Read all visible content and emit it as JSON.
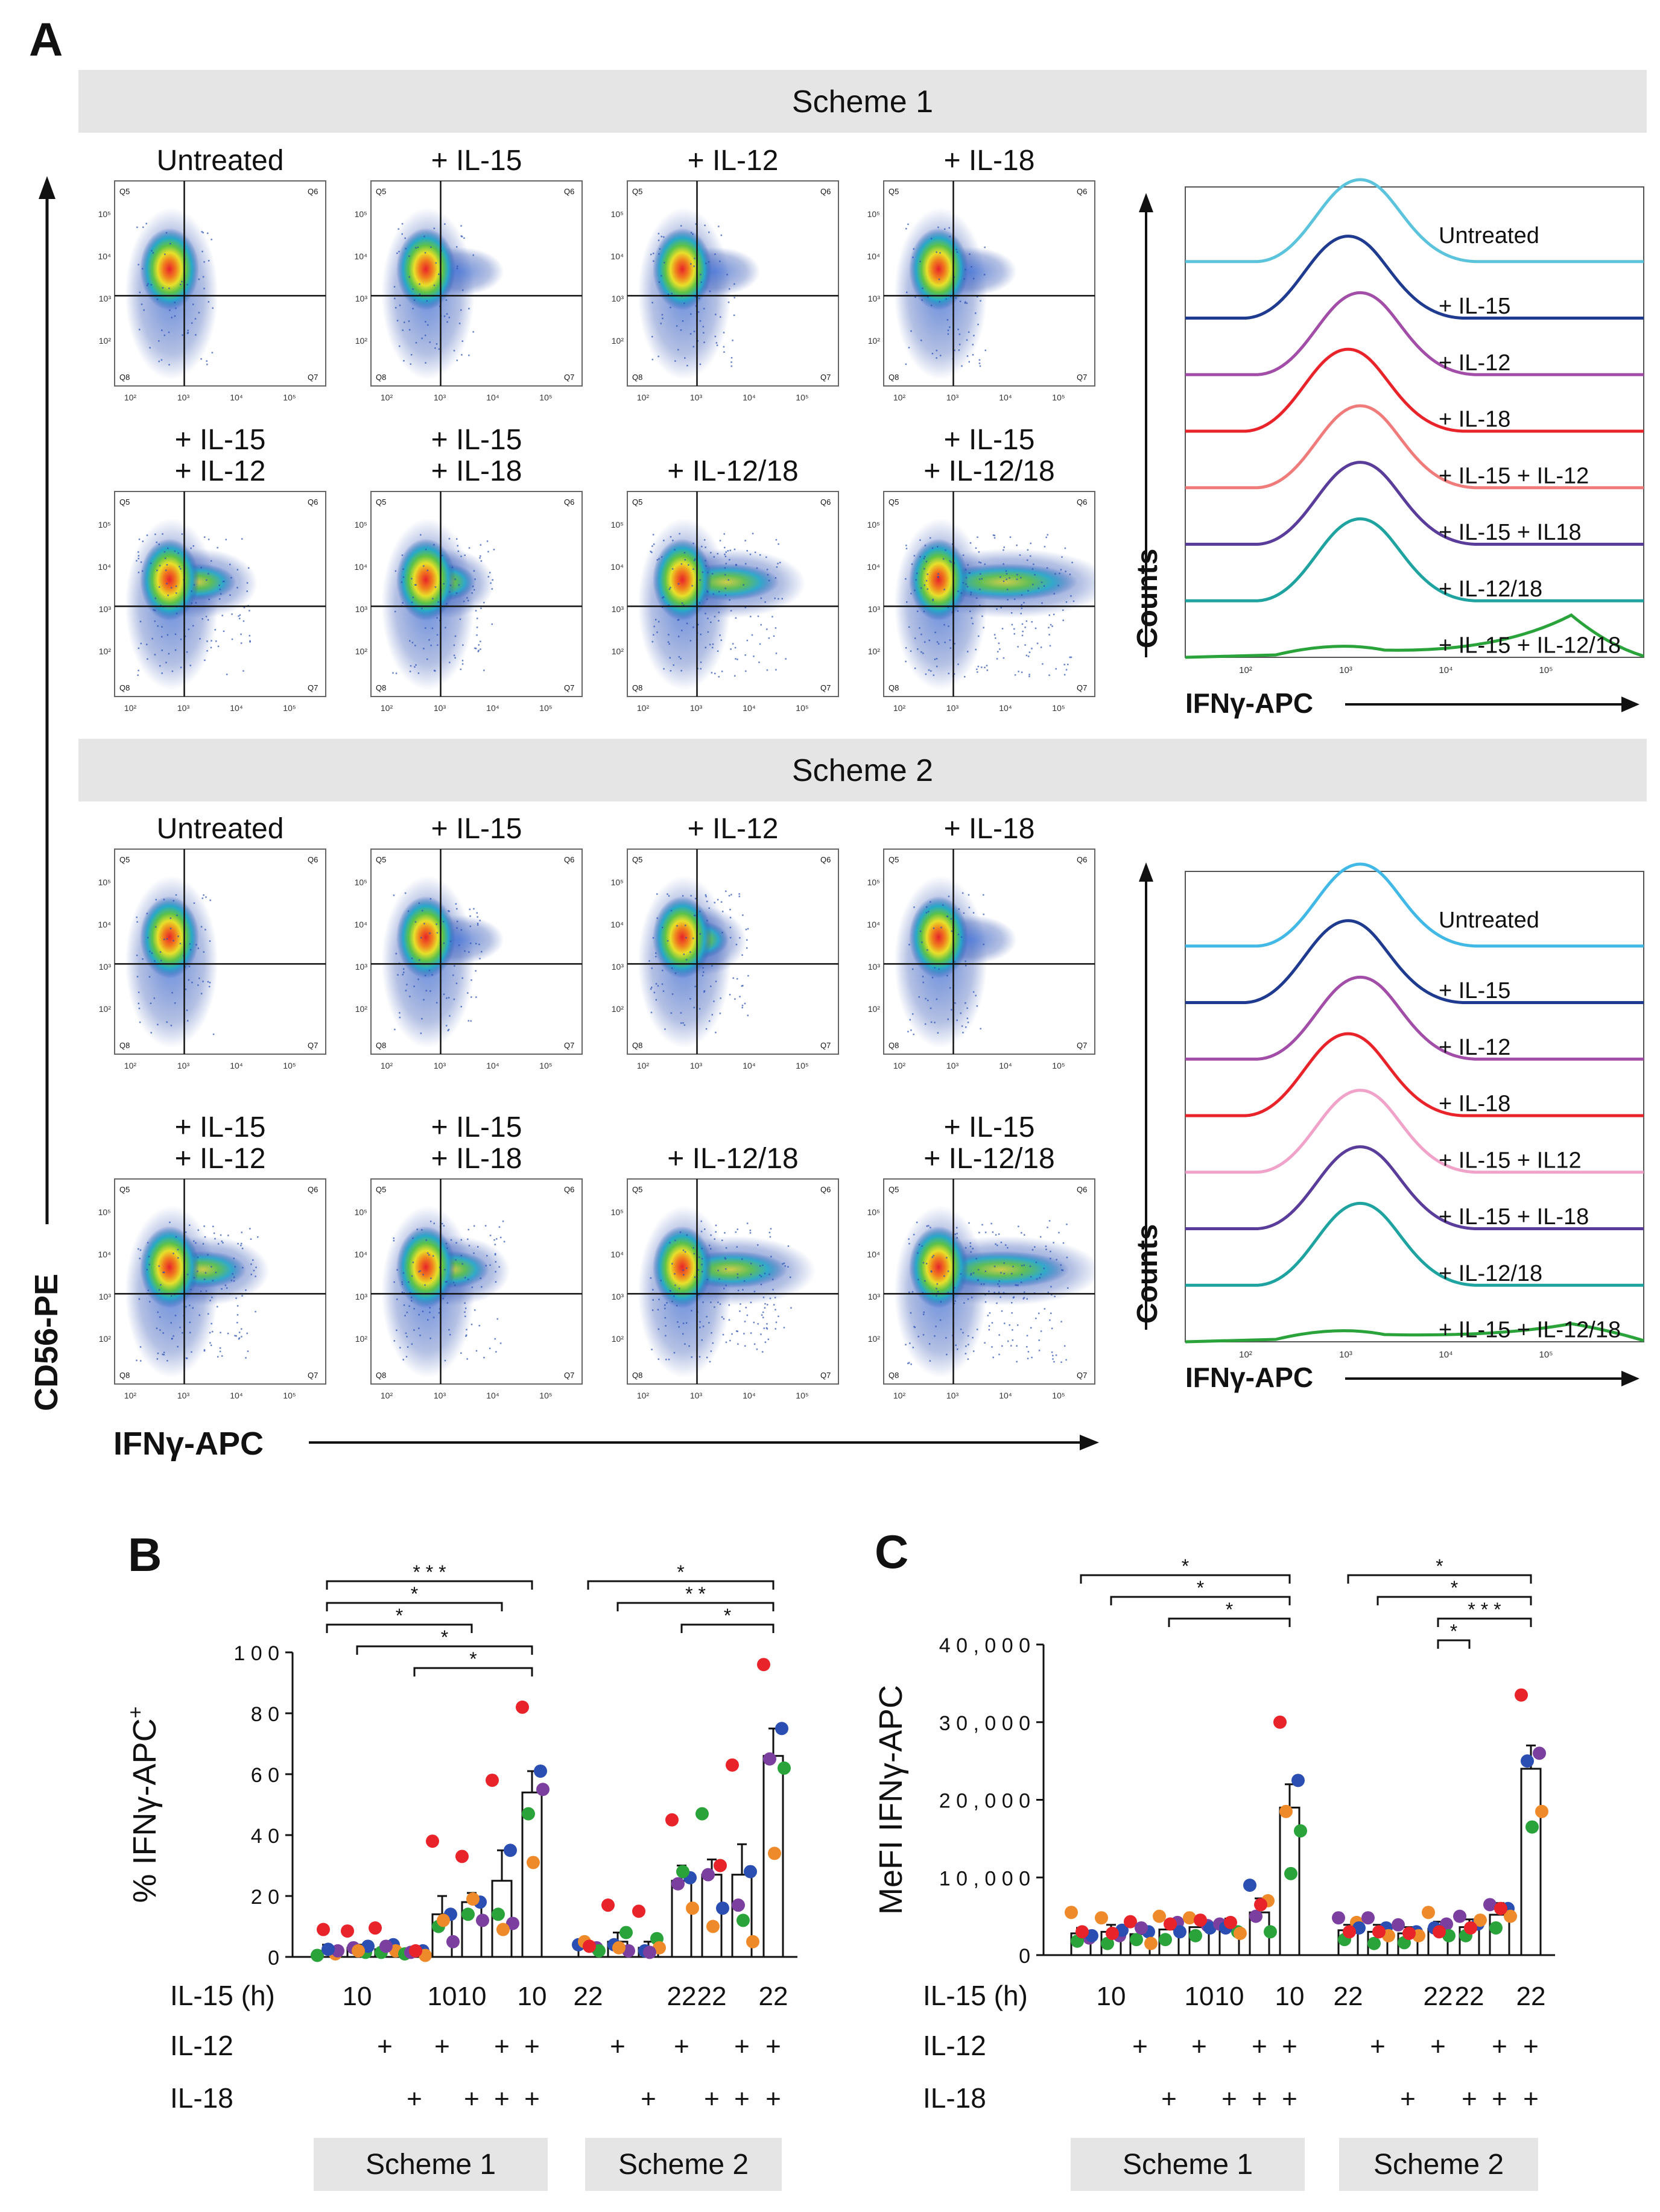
{
  "panel_labels": {
    "a": "A",
    "b": "B",
    "c": "C"
  },
  "schemes": [
    {
      "title": "Scheme 1",
      "plots": [
        {
          "l1": "",
          "l2": "Untreated",
          "ifng_high_fraction": 0.02
        },
        {
          "l1": "",
          "l2": "+ IL-15",
          "ifng_high_fraction": 0.07
        },
        {
          "l1": "",
          "l2": "+ IL-12",
          "ifng_high_fraction": 0.1
        },
        {
          "l1": "",
          "l2": "+ IL-18",
          "ifng_high_fraction": 0.05
        },
        {
          "l1": "+ IL-15",
          "l2": "+ IL-12",
          "ifng_high_fraction": 0.32
        },
        {
          "l1": "+ IL-15",
          "l2": "+ IL-18",
          "ifng_high_fraction": 0.22
        },
        {
          "l1": "",
          "l2": "+ IL-12/18",
          "ifng_high_fraction": 0.5
        },
        {
          "l1": "+ IL-15",
          "l2": "+ IL-12/18",
          "ifng_high_fraction": 0.75
        }
      ],
      "histogram": {
        "labels": [
          "Untreated",
          "+ IL-15",
          "+ IL-12",
          "+ IL-18",
          "+ IL-15 + IL-12",
          "+ IL-15 + IL18",
          "+ IL-12/18",
          "+ IL-15 + IL-12/18"
        ],
        "colors": [
          "#5bc4dc",
          "#1f3b8f",
          "#a24ea8",
          "#e8232a",
          "#f07b7b",
          "#5a3d9b",
          "#1fa3a0",
          "#2ba33b"
        ]
      }
    },
    {
      "title": "Scheme 2",
      "plots": [
        {
          "l1": "",
          "l2": "Untreated",
          "ifng_high_fraction": 0.03
        },
        {
          "l1": "",
          "l2": "+ IL-15",
          "ifng_high_fraction": 0.12
        },
        {
          "l1": "",
          "l2": "+ IL-12",
          "ifng_high_fraction": 0.2
        },
        {
          "l1": "",
          "l2": "+ IL-18",
          "ifng_high_fraction": 0.05
        },
        {
          "l1": "+ IL-15",
          "l2": "+ IL-12",
          "ifng_high_fraction": 0.38
        },
        {
          "l1": "+ IL-15",
          "l2": "+ IL-18",
          "ifng_high_fraction": 0.3
        },
        {
          "l1": "",
          "l2": "+ IL-12/18",
          "ifng_high_fraction": 0.55
        },
        {
          "l1": "+ IL-15",
          "l2": "+ IL-12/18",
          "ifng_high_fraction": 0.7
        }
      ],
      "histogram": {
        "labels": [
          "Untreated",
          "+ IL-15",
          "+ IL-12",
          "+ IL-18",
          "+ IL-15 + IL12",
          "+ IL-15 + IL-18",
          "+ IL-12/18",
          "+ IL-15 + IL-12/18"
        ],
        "colors": [
          "#41b8e6",
          "#1f3b8f",
          "#a24ea8",
          "#e8232a",
          "#f0a2c8",
          "#5a3d9b",
          "#1fa3a0",
          "#2ba33b"
        ]
      }
    }
  ],
  "quadrant_labels": [
    "Q5",
    "Q6",
    "Q8",
    "Q7"
  ],
  "tick_exponents": [
    "10²",
    "10³",
    "10⁴",
    "10⁵"
  ],
  "hist_tick_exponents": [
    "10²",
    "10³",
    "10⁴",
    "10⁵"
  ],
  "axis_labels": {
    "flow_y": "CD56-PE",
    "flow_x": "IFNγ-APC",
    "hist_y": "Counts",
    "hist_x": "IFNγ-APC"
  },
  "row_labels": {
    "il15": "IL-15 (h)",
    "il12": "IL-12",
    "il18": "IL-18"
  },
  "plus_sign": "+",
  "conditions": [
    {
      "il15": "",
      "il12": "",
      "il18": ""
    },
    {
      "il15": "10",
      "il12": "",
      "il18": ""
    },
    {
      "il15": "",
      "il12": "+",
      "il18": ""
    },
    {
      "il15": "",
      "il12": "",
      "il18": "+"
    },
    {
      "il15": "10",
      "il12": "+",
      "il18": ""
    },
    {
      "il15": "10",
      "il12": "",
      "il18": "+"
    },
    {
      "il15": "",
      "il12": "+",
      "il18": "+"
    },
    {
      "il15": "10",
      "il12": "+",
      "il18": "+"
    },
    {
      "il15": "22",
      "il12": "",
      "il18": ""
    },
    {
      "il15": "",
      "il12": "+",
      "il18": ""
    },
    {
      "il15": "",
      "il12": "",
      "il18": "+"
    },
    {
      "il15": "22",
      "il12": "+",
      "il18": ""
    },
    {
      "il15": "22",
      "il12": "",
      "il18": "+"
    },
    {
      "il15": "",
      "il12": "+",
      "il18": "+"
    },
    {
      "il15": "22",
      "il12": "+",
      "il18": "+"
    }
  ],
  "group_labels": [
    "Scheme 1",
    "Scheme 2"
  ],
  "chart_data": [
    {
      "id": "B",
      "type": "bar",
      "title": "",
      "ylabel": "% IFNγ-APC",
      "ylabel_sup": "+",
      "ylim": [
        0,
        100
      ],
      "yticks": [
        0,
        20,
        40,
        60,
        80,
        100
      ],
      "ytick_labels": [
        "0",
        "2 0",
        "4 0",
        "6 0",
        "8 0",
        "1 0 0"
      ],
      "means": [
        2,
        3,
        2.5,
        1.5,
        14,
        18,
        25,
        54,
        3.5,
        5,
        3,
        25,
        27,
        27,
        66
      ],
      "errors": [
        2,
        1,
        1.5,
        0.5,
        6,
        3,
        10,
        7,
        1,
        3,
        2,
        5,
        5,
        10,
        9
      ],
      "points": [
        [
          [
            0.5,
            "#2ba33b"
          ],
          [
            1,
            "#ef8a2b"
          ],
          [
            9,
            "#e8232a"
          ],
          [
            2,
            "#7b3fa0"
          ],
          [
            2.5,
            "#2a4eb2"
          ]
        ],
        [
          [
            8.5,
            "#e8232a"
          ],
          [
            1.5,
            "#2ba33b"
          ],
          [
            3,
            "#7b3fa0"
          ],
          [
            3.5,
            "#2a4eb2"
          ],
          [
            2,
            "#ef8a2b"
          ]
        ],
        [
          [
            9.5,
            "#e8232a"
          ],
          [
            4,
            "#2a4eb2"
          ],
          [
            1.5,
            "#2ba33b"
          ],
          [
            2,
            "#ef8a2b"
          ],
          [
            3.5,
            "#7b3fa0"
          ]
        ],
        [
          [
            1,
            "#2ba33b"
          ],
          [
            2,
            "#2a4eb2"
          ],
          [
            1.5,
            "#7b3fa0"
          ],
          [
            0.5,
            "#ef8a2b"
          ],
          [
            2,
            "#e8232a"
          ]
        ],
        [
          [
            38,
            "#e8232a"
          ],
          [
            14,
            "#2a4eb2"
          ],
          [
            10,
            "#2ba33b"
          ],
          [
            5,
            "#7b3fa0"
          ],
          [
            12,
            "#ef8a2b"
          ]
        ],
        [
          [
            33,
            "#e8232a"
          ],
          [
            18,
            "#2a4eb2"
          ],
          [
            14,
            "#2ba33b"
          ],
          [
            12,
            "#7b3fa0"
          ],
          [
            19,
            "#ef8a2b"
          ]
        ],
        [
          [
            58,
            "#e8232a"
          ],
          [
            35,
            "#2a4eb2"
          ],
          [
            14,
            "#2ba33b"
          ],
          [
            11,
            "#7b3fa0"
          ],
          [
            9,
            "#ef8a2b"
          ]
        ],
        [
          [
            82,
            "#e8232a"
          ],
          [
            61,
            "#2a4eb2"
          ],
          [
            47,
            "#2ba33b"
          ],
          [
            55,
            "#7b3fa0"
          ],
          [
            31,
            "#ef8a2b"
          ]
        ],
        [
          [
            4,
            "#2a4eb2"
          ],
          [
            3,
            "#7b3fa0"
          ],
          [
            5,
            "#ef8a2b"
          ],
          [
            2,
            "#2ba33b"
          ],
          [
            3.5,
            "#e8232a"
          ]
        ],
        [
          [
            17,
            "#e8232a"
          ],
          [
            8,
            "#2ba33b"
          ],
          [
            4,
            "#2a4eb2"
          ],
          [
            2,
            "#7b3fa0"
          ],
          [
            3,
            "#ef8a2b"
          ]
        ],
        [
          [
            15,
            "#e8232a"
          ],
          [
            6,
            "#2ba33b"
          ],
          [
            2,
            "#2a4eb2"
          ],
          [
            3,
            "#ef8a2b"
          ],
          [
            1.5,
            "#7b3fa0"
          ]
        ],
        [
          [
            45,
            "#e8232a"
          ],
          [
            26,
            "#2a4eb2"
          ],
          [
            24,
            "#7b3fa0"
          ],
          [
            16,
            "#ef8a2b"
          ],
          [
            28,
            "#2ba33b"
          ]
        ],
        [
          [
            47,
            "#2ba33b"
          ],
          [
            30,
            "#e8232a"
          ],
          [
            27,
            "#7b3fa0"
          ],
          [
            16,
            "#2a4eb2"
          ],
          [
            10,
            "#ef8a2b"
          ]
        ],
        [
          [
            63,
            "#e8232a"
          ],
          [
            28,
            "#2a4eb2"
          ],
          [
            17,
            "#7b3fa0"
          ],
          [
            5,
            "#ef8a2b"
          ],
          [
            12,
            "#2ba33b"
          ]
        ],
        [
          [
            96,
            "#e8232a"
          ],
          [
            75,
            "#2a4eb2"
          ],
          [
            65,
            "#7b3fa0"
          ],
          [
            62,
            "#2ba33b"
          ],
          [
            34,
            "#ef8a2b"
          ]
        ]
      ],
      "brackets": [
        {
          "from": 0,
          "to": 7,
          "label": "* * *"
        },
        {
          "from": 0,
          "to": 6,
          "label": "*"
        },
        {
          "from": 0,
          "to": 5,
          "label": "*"
        },
        {
          "from": 1,
          "to": 7,
          "label": "*"
        },
        {
          "from": 3,
          "to": 7,
          "label": "*"
        },
        {
          "from": 8,
          "to": 14,
          "label": "*"
        },
        {
          "from": 9,
          "to": 14,
          "label": "* *"
        },
        {
          "from": 11,
          "to": 14,
          "label": "*"
        }
      ]
    },
    {
      "id": "C",
      "type": "bar",
      "title": "",
      "ylabel": "MeFI IFNγ-APC",
      "ylim": [
        0,
        40000
      ],
      "yticks": [
        0,
        10000,
        20000,
        30000,
        40000
      ],
      "ytick_labels": [
        "0",
        "1 0 , 0 0 0",
        "2 0 , 0 0 0",
        "3 0 , 0 0 0",
        "4 0 , 0 0 0"
      ],
      "means": [
        2800,
        3000,
        2700,
        3300,
        3600,
        3700,
        5500,
        19000,
        3200,
        3000,
        2800,
        3400,
        3600,
        5200,
        24000
      ],
      "errors": [
        700,
        900,
        800,
        900,
        900,
        1000,
        1800,
        3000,
        700,
        900,
        800,
        900,
        1000,
        1500,
        3000
      ],
      "points": [
        [
          [
            5500,
            "#ef8a2b"
          ],
          [
            2200,
            "#7b3fa0"
          ],
          [
            1800,
            "#2ba33b"
          ],
          [
            2500,
            "#2a4eb2"
          ],
          [
            3000,
            "#e8232a"
          ]
        ],
        [
          [
            4800,
            "#ef8a2b"
          ],
          [
            2500,
            "#7b3fa0"
          ],
          [
            1500,
            "#2ba33b"
          ],
          [
            3200,
            "#2a4eb2"
          ],
          [
            2800,
            "#e8232a"
          ]
        ],
        [
          [
            4300,
            "#e8232a"
          ],
          [
            3000,
            "#2a4eb2"
          ],
          [
            2000,
            "#2ba33b"
          ],
          [
            1500,
            "#ef8a2b"
          ],
          [
            3500,
            "#7b3fa0"
          ]
        ],
        [
          [
            5000,
            "#ef8a2b"
          ],
          [
            4200,
            "#7b3fa0"
          ],
          [
            2000,
            "#2ba33b"
          ],
          [
            3000,
            "#2a4eb2"
          ],
          [
            4000,
            "#e8232a"
          ]
        ],
        [
          [
            4800,
            "#ef8a2b"
          ],
          [
            3800,
            "#7b3fa0"
          ],
          [
            2500,
            "#2ba33b"
          ],
          [
            3500,
            "#2a4eb2"
          ],
          [
            4500,
            "#e8232a"
          ]
        ],
        [
          [
            4000,
            "#7b3fa0"
          ],
          [
            3000,
            "#2ba33b"
          ],
          [
            3500,
            "#2a4eb2"
          ],
          [
            2800,
            "#ef8a2b"
          ],
          [
            4200,
            "#e8232a"
          ]
        ],
        [
          [
            9000,
            "#2a4eb2"
          ],
          [
            7000,
            "#ef8a2b"
          ],
          [
            5000,
            "#7b3fa0"
          ],
          [
            3000,
            "#2ba33b"
          ],
          [
            6500,
            "#e8232a"
          ]
        ],
        [
          [
            30000,
            "#e8232a"
          ],
          [
            22500,
            "#2a4eb2"
          ],
          [
            18500,
            "#ef8a2b"
          ],
          [
            16000,
            "#2ba33b"
          ],
          [
            10500,
            "#2ba33b"
          ]
        ],
        [
          [
            4800,
            "#7b3fa0"
          ],
          [
            4200,
            "#ef8a2b"
          ],
          [
            2000,
            "#2ba33b"
          ],
          [
            3500,
            "#2a4eb2"
          ],
          [
            3000,
            "#e8232a"
          ]
        ],
        [
          [
            4800,
            "#7b3fa0"
          ],
          [
            3500,
            "#2a4eb2"
          ],
          [
            1500,
            "#2ba33b"
          ],
          [
            2500,
            "#ef8a2b"
          ],
          [
            3000,
            "#e8232a"
          ]
        ],
        [
          [
            3900,
            "#7b3fa0"
          ],
          [
            3000,
            "#2a4eb2"
          ],
          [
            1600,
            "#2ba33b"
          ],
          [
            2500,
            "#ef8a2b"
          ],
          [
            2800,
            "#e8232a"
          ]
        ],
        [
          [
            5500,
            "#ef8a2b"
          ],
          [
            4000,
            "#7b3fa0"
          ],
          [
            3500,
            "#2a4eb2"
          ],
          [
            2500,
            "#2ba33b"
          ],
          [
            3000,
            "#e8232a"
          ]
        ],
        [
          [
            5000,
            "#7b3fa0"
          ],
          [
            4000,
            "#2a4eb2"
          ],
          [
            2500,
            "#2ba33b"
          ],
          [
            4500,
            "#ef8a2b"
          ],
          [
            3500,
            "#e8232a"
          ]
        ],
        [
          [
            6500,
            "#7b3fa0"
          ],
          [
            6000,
            "#2a4eb2"
          ],
          [
            3500,
            "#2ba33b"
          ],
          [
            5000,
            "#ef8a2b"
          ],
          [
            6000,
            "#e8232a"
          ]
        ],
        [
          [
            33500,
            "#e8232a"
          ],
          [
            26000,
            "#7b3fa0"
          ],
          [
            25000,
            "#2a4eb2"
          ],
          [
            18500,
            "#ef8a2b"
          ],
          [
            16500,
            "#2ba33b"
          ]
        ]
      ],
      "brackets": [
        {
          "from": 0,
          "to": 7,
          "label": "*"
        },
        {
          "from": 1,
          "to": 7,
          "label": "*"
        },
        {
          "from": 3,
          "to": 7,
          "label": "*"
        },
        {
          "from": 8,
          "to": 14,
          "label": "*"
        },
        {
          "from": 9,
          "to": 14,
          "label": "*"
        },
        {
          "from": 11,
          "to": 14,
          "label": "* * *"
        },
        {
          "from": 11,
          "to": 12,
          "label": "*"
        }
      ]
    }
  ]
}
